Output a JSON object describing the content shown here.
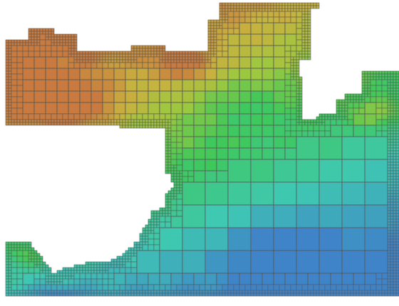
{
  "map": {
    "kind": "adaptive-quadtree-mesh",
    "palette": {
      "deep": "#3F83C8",
      "shelf": "#3FC8B2",
      "shallow": "#3FC85A",
      "lowland": "#9DC83F",
      "upland": "#C8B23F",
      "high": "#C87A3F",
      "grid_line": "#5A5A5A",
      "background": "#FFFFFF"
    }
  }
}
